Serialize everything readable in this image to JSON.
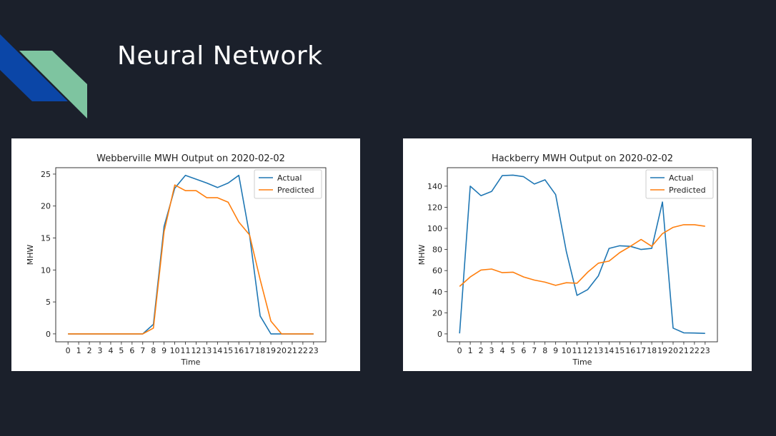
{
  "slide": {
    "title": "Neural Network",
    "colors": {
      "background": "#1b202b",
      "accent_blue": "#0b46a7",
      "accent_green": "#7ec4a0"
    }
  },
  "chart_data": [
    {
      "type": "line",
      "title": "Webberville MWH Output on 2020-02-02",
      "xlabel": "Time",
      "ylabel": "MHW",
      "x": [
        0,
        1,
        2,
        3,
        4,
        5,
        6,
        7,
        8,
        9,
        10,
        11,
        12,
        13,
        14,
        15,
        16,
        17,
        18,
        19,
        20,
        21,
        22,
        23
      ],
      "xlim": [
        -1.15,
        24.15
      ],
      "ylim": [
        -1.24,
        26.0
      ],
      "yticks": [
        0,
        5,
        10,
        15,
        20,
        25
      ],
      "legend": "top-right",
      "series": [
        {
          "name": "Actual",
          "color": "#1f77b4",
          "values": [
            0,
            0,
            0,
            0,
            0,
            0,
            0,
            0,
            1.5,
            16.8,
            22.8,
            24.8,
            24.2,
            23.6,
            22.9,
            23.6,
            24.8,
            15.5,
            2.8,
            0,
            0,
            0,
            0,
            0
          ]
        },
        {
          "name": "Predicted",
          "color": "#ff7f0e",
          "values": [
            0,
            0,
            0,
            0,
            0,
            0,
            0,
            0,
            0.9,
            16,
            23.3,
            22.4,
            22.4,
            21.3,
            21.3,
            20.6,
            17.5,
            15.5,
            8.5,
            2,
            0,
            0,
            0,
            0
          ]
        }
      ]
    },
    {
      "type": "line",
      "title": "Hackberry MWH Output on 2020-02-02",
      "xlabel": "Time",
      "ylabel": "MHW",
      "x": [
        0,
        1,
        2,
        3,
        4,
        5,
        6,
        7,
        8,
        9,
        10,
        11,
        12,
        13,
        14,
        15,
        16,
        17,
        18,
        19,
        20,
        21,
        22,
        23
      ],
      "xlim": [
        -1.15,
        24.15
      ],
      "ylim": [
        -7.5,
        157.5
      ],
      "yticks": [
        0,
        20,
        40,
        60,
        80,
        100,
        120,
        140
      ],
      "legend": "top-right",
      "series": [
        {
          "name": "Actual",
          "color": "#1f77b4",
          "values": [
            0.5,
            140,
            131,
            135,
            150,
            150.5,
            149,
            142,
            146,
            132,
            78,
            36.5,
            42,
            55,
            81,
            83.5,
            83,
            80,
            81,
            125,
            5.5,
            1,
            0.8,
            0.5
          ]
        },
        {
          "name": "Predicted",
          "color": "#ff7f0e",
          "values": [
            45,
            54,
            60.5,
            61.5,
            58,
            58.5,
            54,
            51,
            49,
            46,
            48.5,
            48,
            58.5,
            67,
            69,
            77,
            83,
            89.5,
            83,
            95,
            101,
            103.5,
            103.5,
            102
          ]
        }
      ]
    }
  ]
}
